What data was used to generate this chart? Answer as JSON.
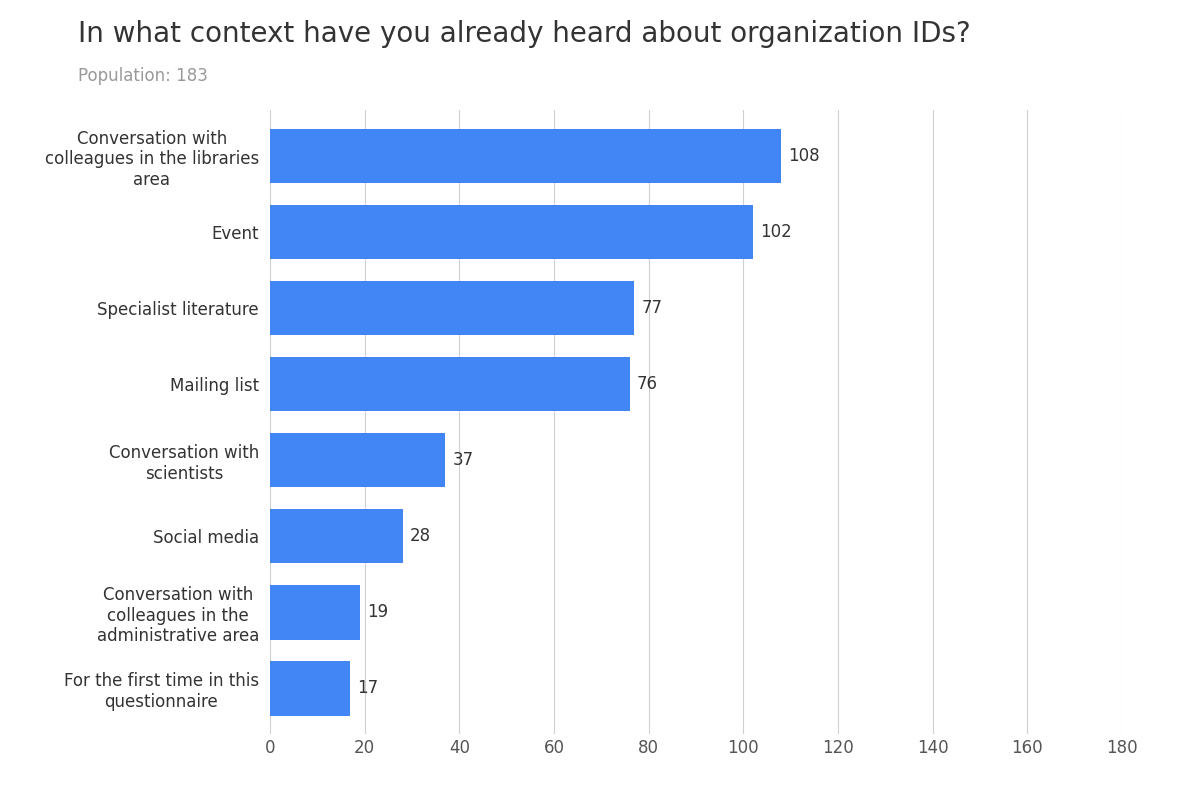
{
  "title": "In what context have you already heard about organization IDs?",
  "subtitle": "Population: 183",
  "categories": [
    "Conversation with\ncolleagues in the libraries\narea",
    "Event",
    "Specialist literature",
    "Mailing list",
    "Conversation with\nscientists",
    "Social media",
    "Conversation with\ncolleagues in the\nadministrative area",
    "For the first time in this\nquestionnaire"
  ],
  "values": [
    108,
    102,
    77,
    76,
    37,
    28,
    19,
    17
  ],
  "bar_color": "#4285f4",
  "background_color": "#ffffff",
  "xlim": [
    0,
    180
  ],
  "xticks": [
    0,
    20,
    40,
    60,
    80,
    100,
    120,
    140,
    160,
    180
  ],
  "title_fontsize": 20,
  "subtitle_fontsize": 12,
  "label_fontsize": 12,
  "value_fontsize": 12,
  "tick_fontsize": 12,
  "grid_color": "#d0d0d0",
  "title_color": "#333333",
  "subtitle_color": "#999999",
  "label_color": "#333333",
  "value_color": "#333333",
  "bar_height": 0.72
}
